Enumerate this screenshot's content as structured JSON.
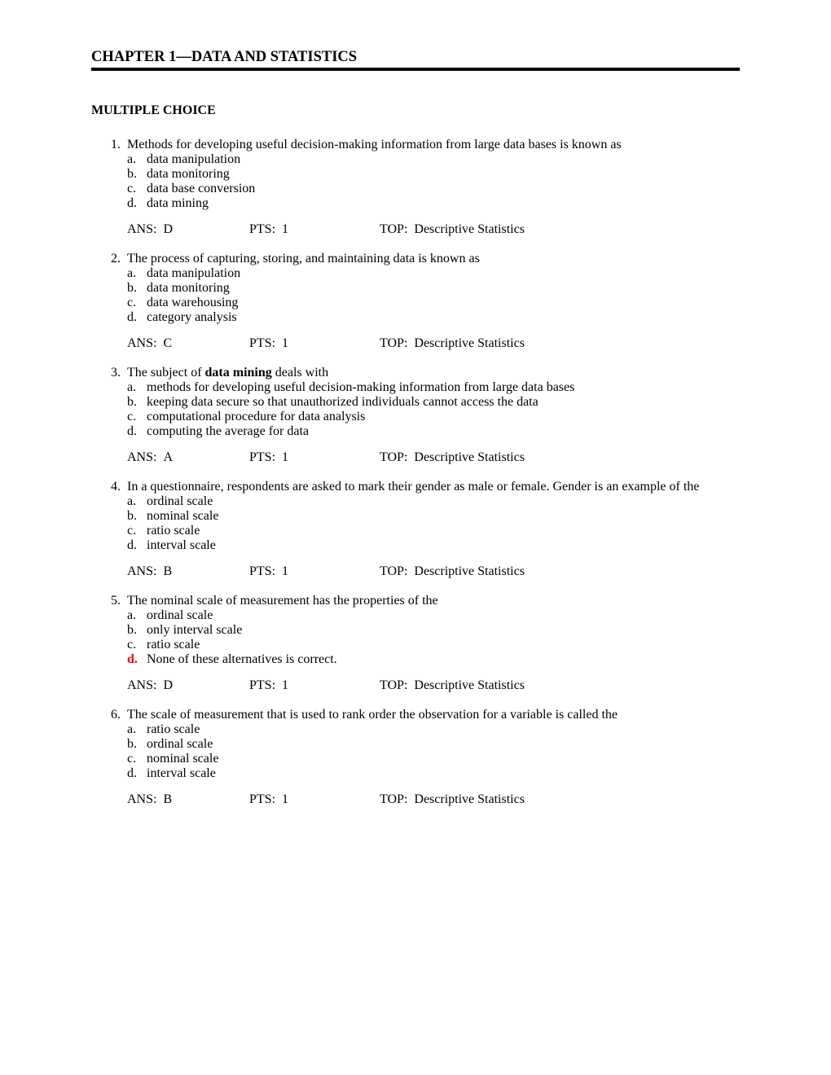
{
  "chapter_title": "CHAPTER 1—DATA AND STATISTICS",
  "section_title": "MULTIPLE CHOICE",
  "labels": {
    "ans": "ANS:",
    "pts": "PTS:",
    "top": "TOP:"
  },
  "choice_letters": [
    "a.",
    "b.",
    "c.",
    "d."
  ],
  "questions": [
    {
      "num": "1.",
      "stem": "Methods for developing useful decision-making information from large data bases is known as",
      "choices": [
        "data manipulation",
        "data monitoring",
        "data base conversion",
        "data mining"
      ],
      "ans": "D",
      "pts": "1",
      "top": "Descriptive Statistics",
      "highlight_choice": null
    },
    {
      "num": "2.",
      "stem": "The process of capturing, storing, and maintaining data is known as",
      "choices": [
        "data manipulation",
        "data monitoring",
        "data warehousing",
        "category analysis"
      ],
      "ans": "C",
      "pts": "1",
      "top": "Descriptive Statistics",
      "highlight_choice": null
    },
    {
      "num": "3.",
      "stem_pre": "The subject of ",
      "stem_bold": "data mining",
      "stem_post": " deals with",
      "choices": [
        "methods for developing useful decision-making information from large data bases",
        "keeping data secure so that unauthorized individuals cannot access the data",
        "computational procedure for data analysis",
        "computing the average for data"
      ],
      "ans": "A",
      "pts": "1",
      "top": "Descriptive Statistics",
      "highlight_choice": null
    },
    {
      "num": "4.",
      "stem": "In a questionnaire, respondents are asked to mark their gender as male or female. Gender is an example of the",
      "choices": [
        "ordinal scale",
        "nominal scale",
        "ratio scale",
        "interval scale"
      ],
      "ans": "B",
      "pts": "1",
      "top": "Descriptive Statistics",
      "highlight_choice": null
    },
    {
      "num": "5.",
      "stem": "The nominal scale of measurement has the properties of the",
      "choices": [
        "ordinal scale",
        "only interval scale",
        "ratio scale",
        "None of these alternatives is correct."
      ],
      "ans": "D",
      "pts": "1",
      "top": "Descriptive Statistics",
      "highlight_choice": 3
    },
    {
      "num": "6.",
      "stem": "The scale of measurement that is used to rank order the observation for a variable is called the",
      "choices": [
        "ratio scale",
        "ordinal scale",
        "nominal scale",
        "interval scale"
      ],
      "ans": "B",
      "pts": "1",
      "top": "Descriptive Statistics",
      "highlight_choice": null
    }
  ]
}
